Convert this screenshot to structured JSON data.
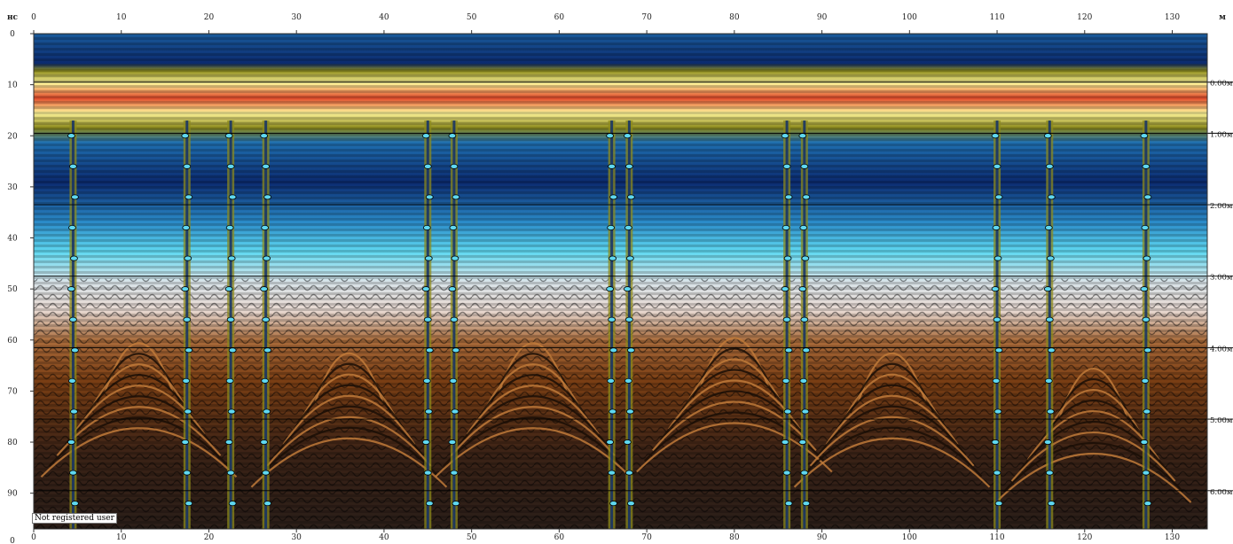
{
  "chart_data": {
    "type": "heatmap",
    "x_unit": "м",
    "y_unit": "нс",
    "x_ticks_top": [
      0,
      10,
      20,
      30,
      40,
      50,
      60,
      70,
      80,
      90,
      100,
      110,
      120,
      130
    ],
    "x_ticks_bottom": [
      0,
      10,
      20,
      30,
      40,
      50,
      60,
      70,
      80,
      90,
      100,
      110,
      120,
      130
    ],
    "x_range": [
      0,
      134
    ],
    "y_ticks": [
      0,
      10,
      20,
      30,
      40,
      50,
      60,
      70,
      80,
      90
    ],
    "y_range": [
      0,
      97
    ],
    "bottom_left_label": "0",
    "depth_lines": [
      {
        "label": "0.00м",
        "time_ns": 9.5
      },
      {
        "label": "1.00м",
        "time_ns": 19.5
      },
      {
        "label": "2.00м",
        "time_ns": 33.5
      },
      {
        "label": "3.00м",
        "time_ns": 47.5
      },
      {
        "label": "4.00м",
        "time_ns": 61.5
      },
      {
        "label": "5.00м",
        "time_ns": 75.5
      },
      {
        "label": "6.00м",
        "time_ns": 89.5
      }
    ],
    "vertical_anomalies_m": [
      4.5,
      17.5,
      22.5,
      26.5,
      45,
      48,
      66,
      68,
      86,
      88,
      110,
      116,
      127
    ],
    "hyperbolas": [
      {
        "x_m": 12,
        "apex_ns": 58
      },
      {
        "x_m": 36,
        "apex_ns": 60
      },
      {
        "x_m": 57,
        "apex_ns": 58
      },
      {
        "x_m": 80,
        "apex_ns": 57
      },
      {
        "x_m": 98,
        "apex_ns": 60
      },
      {
        "x_m": 121,
        "apex_ns": 63
      }
    ],
    "palette": {
      "deep_blue": "#0b2a6e",
      "blue": "#1f6fb0",
      "cyan": "#5fd8f0",
      "pale": "#e8d8d0",
      "brown": "#8a4a1a",
      "dark": "#1a1410",
      "olive": "#8c8a1c",
      "yellow": "#fff59a",
      "red": "#e04a2a",
      "grey": "#9a9a9a"
    }
  },
  "watermark": "Not registered user"
}
